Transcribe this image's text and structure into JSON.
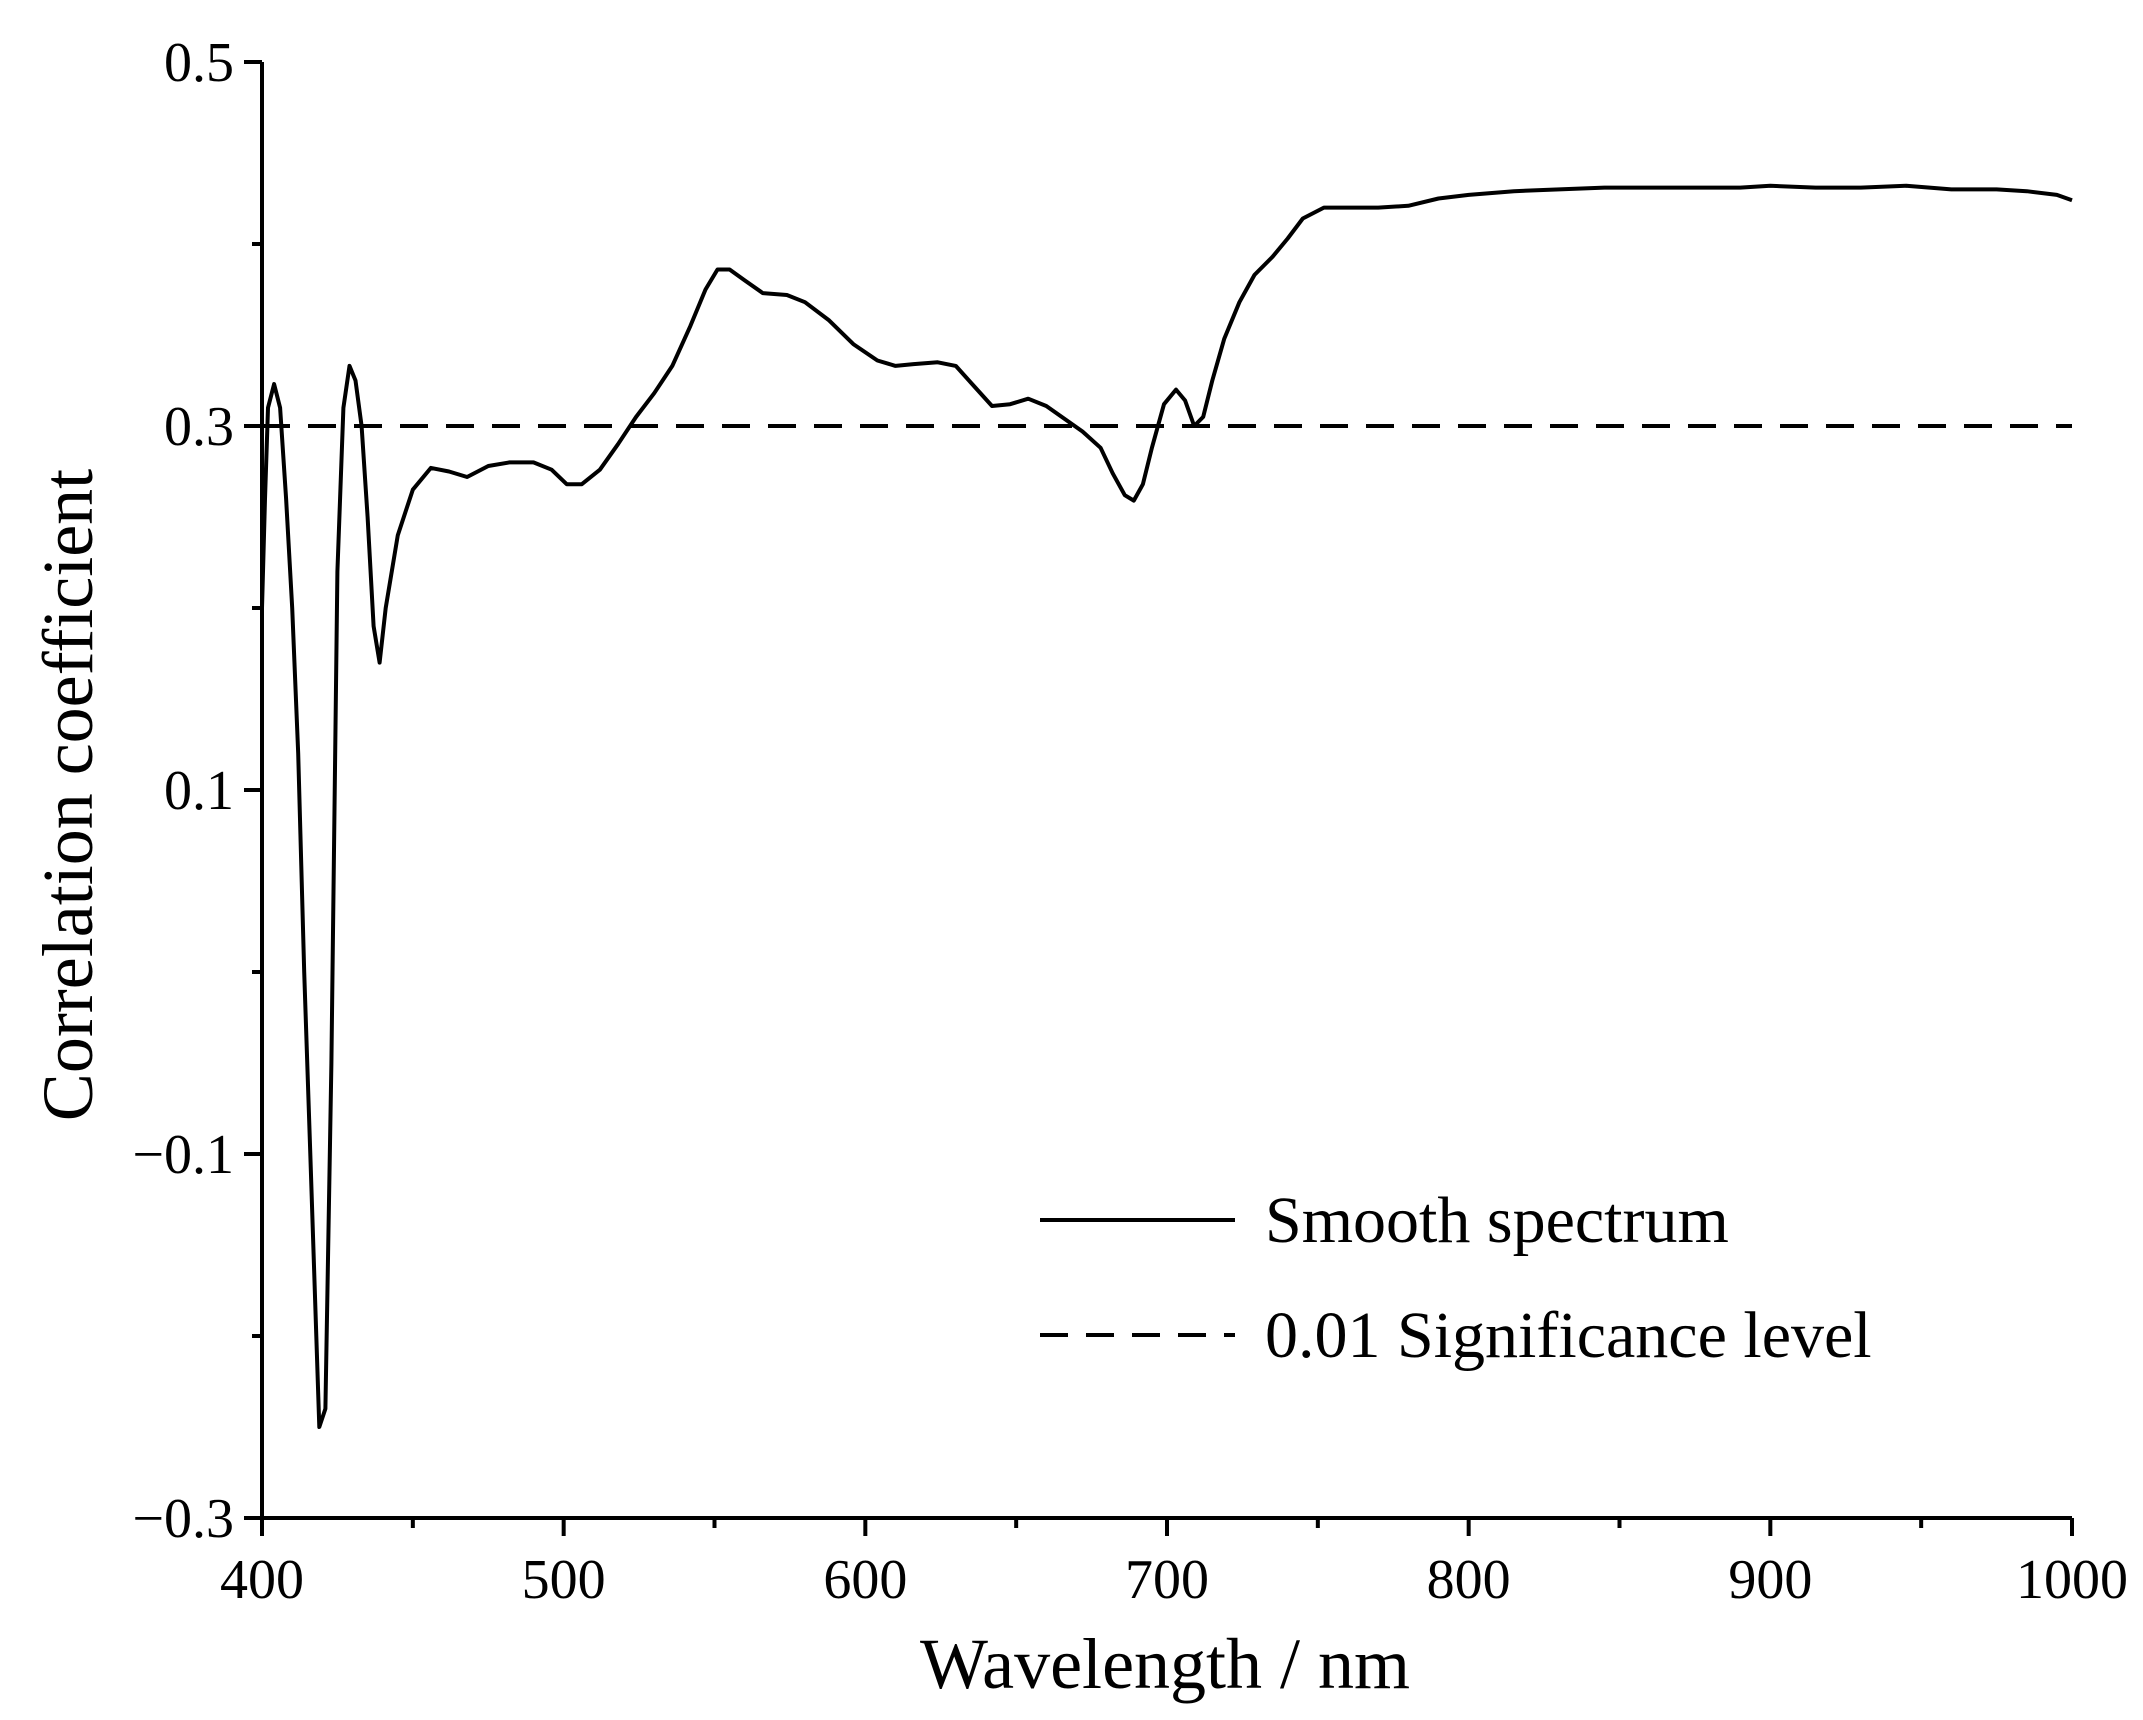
{
  "chart_data": {
    "type": "line",
    "title": "",
    "xlabel": "Wavelength / nm",
    "ylabel": "Correlation coefficient",
    "xlim": [
      400,
      1000
    ],
    "ylim": [
      -0.3,
      0.5
    ],
    "xticks": [
      400,
      500,
      600,
      700,
      800,
      900,
      1000
    ],
    "xtick_labels": [
      "400",
      "500",
      "600",
      "700",
      "800",
      "900",
      "1000"
    ],
    "yticks": [
      -0.3,
      -0.1,
      0.1,
      0.3,
      0.5
    ],
    "ytick_labels": [
      "−0.3",
      "−0.1",
      "0.1",
      "0.3",
      "0.5"
    ],
    "grid": false,
    "legend_position": "bottom-right",
    "series": [
      {
        "name": "Smooth spectrum",
        "style": "solid",
        "color": "#000000",
        "points": [
          [
            400,
            0.2
          ],
          [
            401,
            0.26
          ],
          [
            402,
            0.31
          ],
          [
            404,
            0.323
          ],
          [
            406,
            0.31
          ],
          [
            408,
            0.26
          ],
          [
            410,
            0.2
          ],
          [
            412,
            0.12
          ],
          [
            414,
            0.0
          ],
          [
            416,
            -0.1
          ],
          [
            418,
            -0.2
          ],
          [
            419,
            -0.25
          ],
          [
            421,
            -0.24
          ],
          [
            423,
            -0.05
          ],
          [
            425,
            0.22
          ],
          [
            427,
            0.31
          ],
          [
            429,
            0.333
          ],
          [
            431,
            0.325
          ],
          [
            433,
            0.3
          ],
          [
            435,
            0.25
          ],
          [
            437,
            0.19
          ],
          [
            439,
            0.17
          ],
          [
            441,
            0.2
          ],
          [
            445,
            0.24
          ],
          [
            450,
            0.265
          ],
          [
            456,
            0.277
          ],
          [
            462,
            0.275
          ],
          [
            468,
            0.272
          ],
          [
            475,
            0.278
          ],
          [
            482,
            0.28
          ],
          [
            490,
            0.28
          ],
          [
            496,
            0.276
          ],
          [
            501,
            0.268
          ],
          [
            506,
            0.268
          ],
          [
            512,
            0.276
          ],
          [
            518,
            0.29
          ],
          [
            524,
            0.305
          ],
          [
            530,
            0.318
          ],
          [
            536,
            0.333
          ],
          [
            542,
            0.355
          ],
          [
            547,
            0.375
          ],
          [
            551,
            0.386
          ],
          [
            555,
            0.386
          ],
          [
            560,
            0.38
          ],
          [
            566,
            0.373
          ],
          [
            574,
            0.372
          ],
          [
            580,
            0.368
          ],
          [
            588,
            0.358
          ],
          [
            596,
            0.345
          ],
          [
            604,
            0.336
          ],
          [
            610,
            0.333
          ],
          [
            616,
            0.334
          ],
          [
            624,
            0.335
          ],
          [
            630,
            0.333
          ],
          [
            636,
            0.322
          ],
          [
            642,
            0.311
          ],
          [
            648,
            0.312
          ],
          [
            654,
            0.315
          ],
          [
            660,
            0.311
          ],
          [
            666,
            0.304
          ],
          [
            672,
            0.297
          ],
          [
            678,
            0.288
          ],
          [
            682,
            0.274
          ],
          [
            686,
            0.262
          ],
          [
            689,
            0.259
          ],
          [
            692,
            0.268
          ],
          [
            695,
            0.288
          ],
          [
            699,
            0.312
          ],
          [
            703,
            0.32
          ],
          [
            706,
            0.314
          ],
          [
            709,
            0.3
          ],
          [
            712,
            0.305
          ],
          [
            715,
            0.325
          ],
          [
            719,
            0.348
          ],
          [
            724,
            0.368
          ],
          [
            729,
            0.383
          ],
          [
            735,
            0.393
          ],
          [
            740,
            0.403
          ],
          [
            745,
            0.414
          ],
          [
            752,
            0.42
          ],
          [
            760,
            0.42
          ],
          [
            770,
            0.42
          ],
          [
            780,
            0.421
          ],
          [
            790,
            0.425
          ],
          [
            800,
            0.427
          ],
          [
            815,
            0.429
          ],
          [
            830,
            0.43
          ],
          [
            845,
            0.431
          ],
          [
            860,
            0.431
          ],
          [
            875,
            0.431
          ],
          [
            890,
            0.431
          ],
          [
            900,
            0.432
          ],
          [
            915,
            0.431
          ],
          [
            930,
            0.431
          ],
          [
            945,
            0.432
          ],
          [
            960,
            0.43
          ],
          [
            975,
            0.43
          ],
          [
            985,
            0.429
          ],
          [
            995,
            0.427
          ],
          [
            1000,
            0.424
          ]
        ]
      },
      {
        "name": "0.01 Significance level",
        "style": "dashed",
        "color": "#000000",
        "points": [
          [
            400,
            0.3
          ],
          [
            1000,
            0.3
          ]
        ]
      }
    ]
  }
}
